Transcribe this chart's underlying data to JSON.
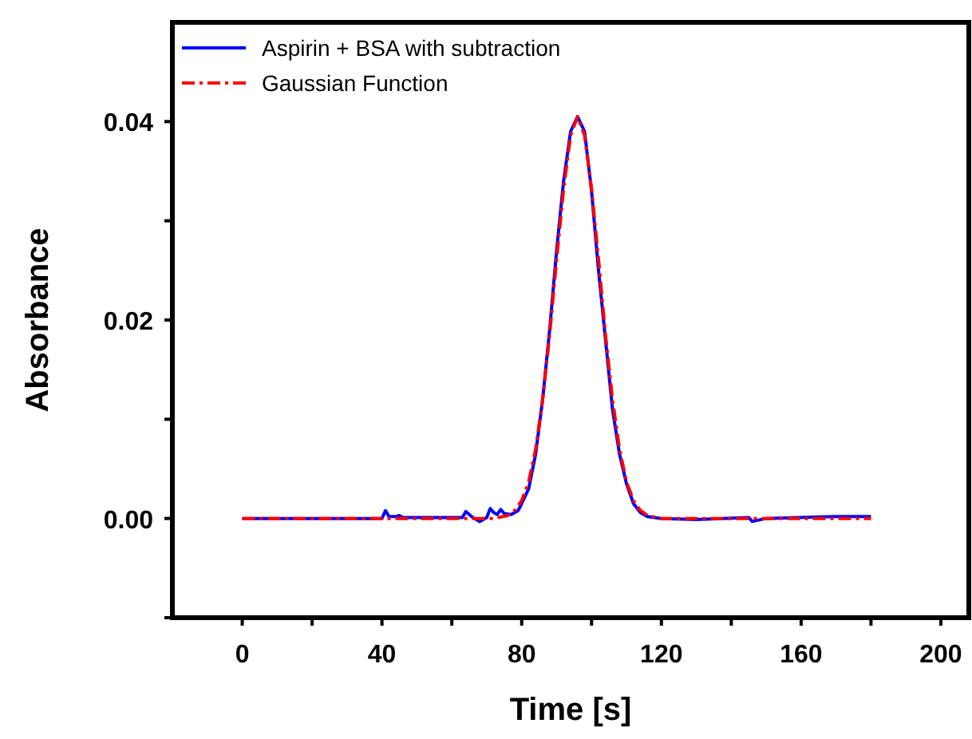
{
  "chart_data": {
    "type": "line",
    "xlabel": "Time [s]",
    "ylabel": "Absorbance",
    "xlim": [
      -20,
      208
    ],
    "ylim": [
      -0.01,
      0.05
    ],
    "xticks": [
      0,
      {
        "value": 20,
        "label": null
      },
      40,
      {
        "value": 60,
        "label": null
      },
      80,
      {
        "value": 100,
        "label": null
      },
      120,
      {
        "value": 140,
        "label": null
      },
      160,
      {
        "value": 180,
        "label": null
      },
      200
    ],
    "yticks": [
      {
        "value": -0.01,
        "label": null
      },
      {
        "value": 0,
        "label": "0.00"
      },
      {
        "value": 0.01,
        "label": null
      },
      {
        "value": 0.02,
        "label": "0.02"
      },
      {
        "value": 0.03,
        "label": null
      },
      {
        "value": 0.04,
        "label": "0.04"
      }
    ],
    "legend": "top left",
    "grid": false,
    "series": [
      {
        "name": "Aspirin + BSA with subtraction",
        "color": "#0000ff",
        "line_style": "solid",
        "x": [
          0,
          40,
          41,
          42,
          44,
          45,
          46,
          60,
          63,
          64,
          66,
          68,
          70,
          71,
          72,
          73,
          74,
          75,
          77,
          79,
          80,
          82,
          84,
          86,
          88,
          90,
          92,
          94,
          96,
          98,
          100,
          102,
          104,
          106,
          108,
          110,
          112,
          114,
          116,
          120,
          130,
          145,
          146,
          150,
          170,
          180
        ],
        "values": [
          0,
          0,
          0.0008,
          0.0002,
          0.0002,
          0.0003,
          0.0001,
          0.0001,
          0.0001,
          0.0007,
          0.0001,
          -0.0003,
          0.0001,
          0.001,
          0.0006,
          0.0004,
          0.0009,
          0.0005,
          0.0004,
          0.0008,
          0.0015,
          0.003,
          0.0065,
          0.012,
          0.019,
          0.027,
          0.034,
          0.039,
          0.0405,
          0.039,
          0.033,
          0.025,
          0.018,
          0.011,
          0.0065,
          0.0035,
          0.0015,
          0.0006,
          0.0002,
          0,
          -0.0001,
          0.0001,
          -0.0003,
          0,
          0.0002,
          0.0002
        ]
      },
      {
        "name": "Gaussian Function",
        "color": "#ff0000",
        "line_style": "dashdot",
        "x": [
          0,
          72,
          76,
          78,
          80,
          82,
          84,
          86,
          88,
          90,
          92,
          94,
          96,
          98,
          100,
          102,
          104,
          106,
          108,
          110,
          112,
          114,
          116,
          120,
          180
        ],
        "values": [
          0,
          0,
          0.0003,
          0.0008,
          0.0018,
          0.0037,
          0.007,
          0.012,
          0.0185,
          0.0261,
          0.0332,
          0.0386,
          0.0405,
          0.0386,
          0.0332,
          0.0261,
          0.0185,
          0.012,
          0.007,
          0.0037,
          0.0018,
          0.0008,
          0.0003,
          0,
          0
        ]
      }
    ]
  }
}
